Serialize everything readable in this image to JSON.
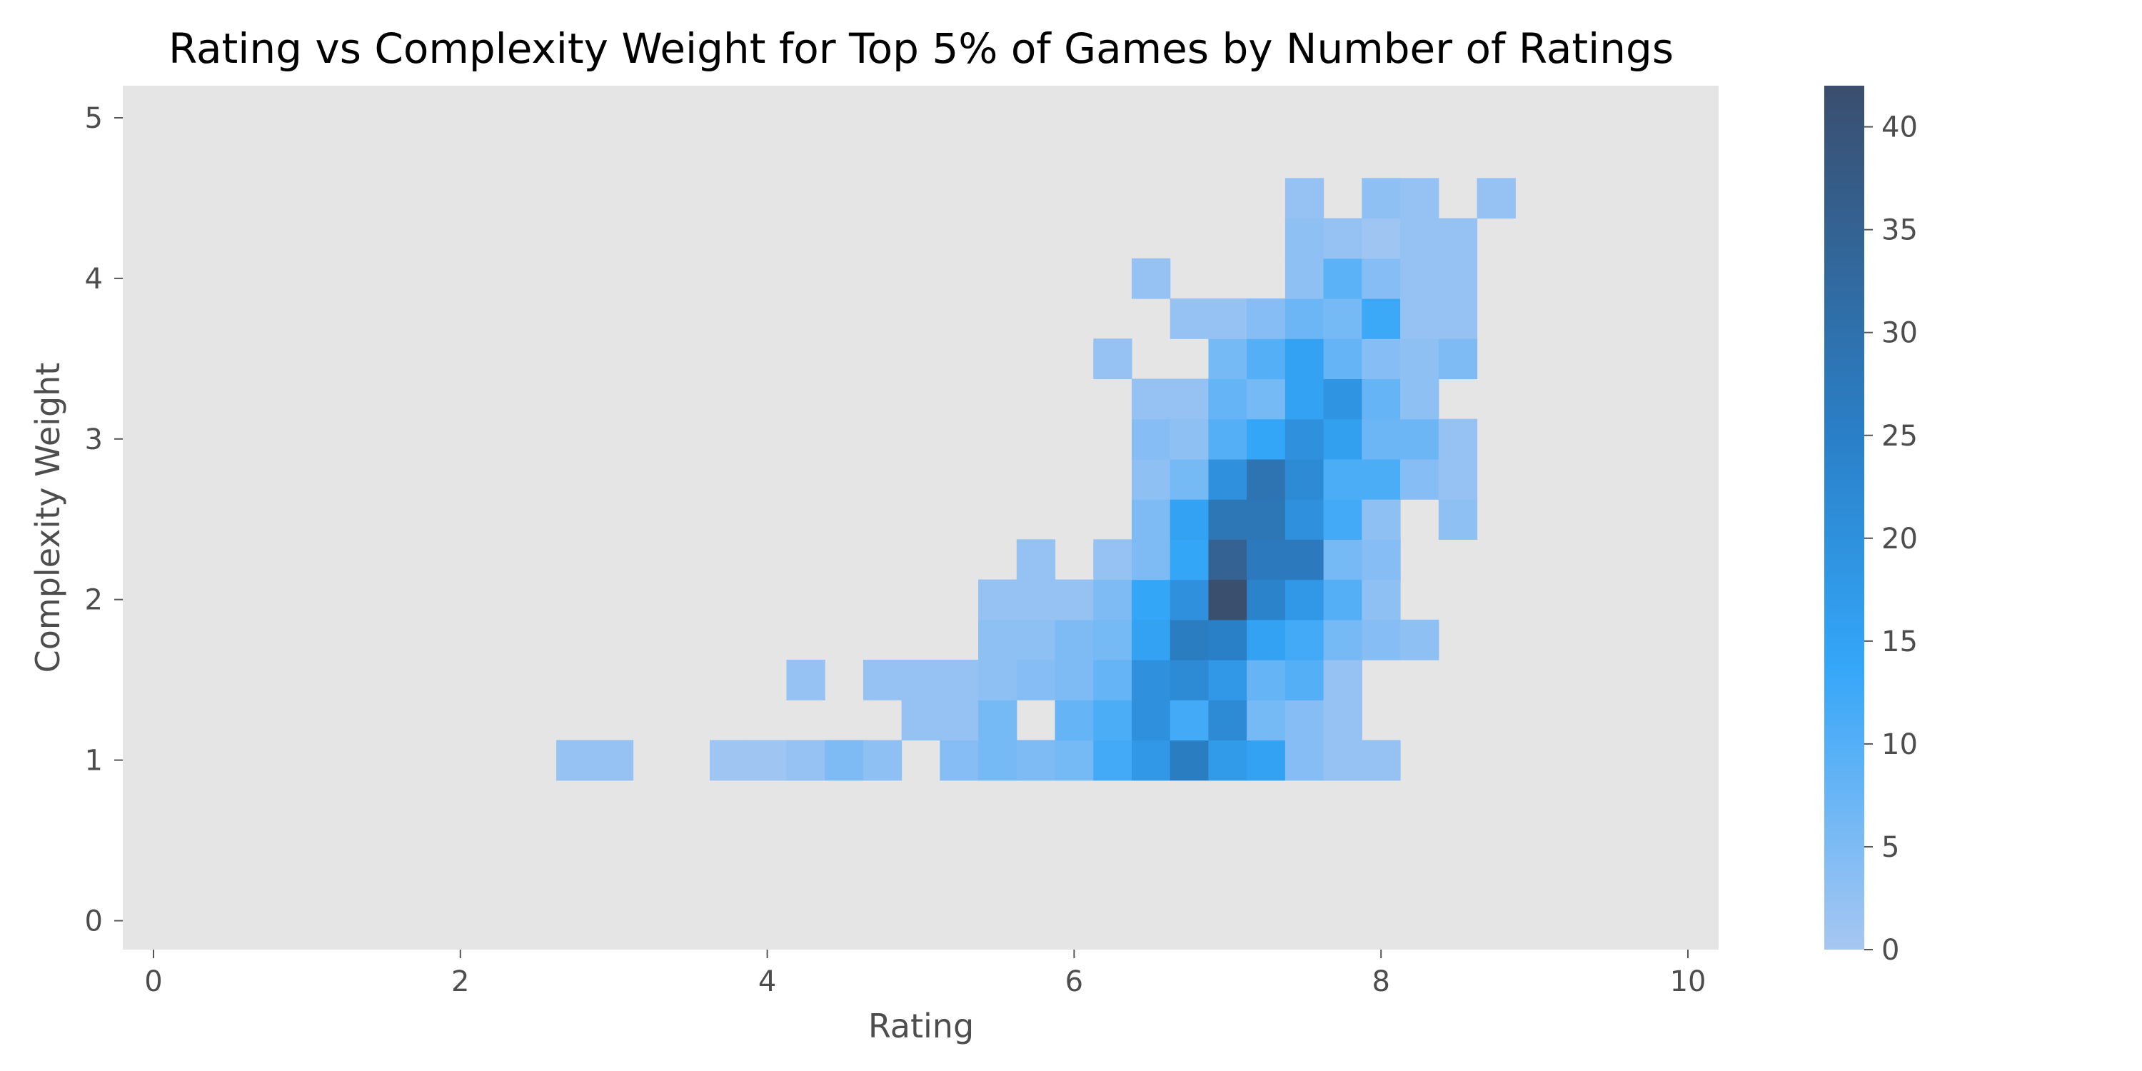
{
  "chart_data": {
    "type": "heatmap",
    "title": "Rating vs Complexity Weight for Top 5% of Games by Number of Ratings",
    "xlabel": "Rating",
    "ylabel": "Complexity Weight",
    "xlim": [
      -0.2,
      10.2
    ],
    "ylim": [
      -0.18,
      5.2
    ],
    "x_ticks": [
      0,
      2,
      4,
      6,
      8,
      10
    ],
    "y_ticks": [
      0,
      1,
      2,
      3,
      4,
      5
    ],
    "bin_width_x": 0.25,
    "bin_height_y": 0.25,
    "colorbar": {
      "min": 0,
      "max": 42,
      "ticks": [
        0,
        5,
        10,
        15,
        20,
        25,
        30,
        35,
        40
      ]
    },
    "grid": false,
    "cells": [
      [
        2.75,
        1.0,
        2
      ],
      [
        3.0,
        1.0,
        2
      ],
      [
        3.75,
        1.0,
        1
      ],
      [
        4.0,
        1.0,
        1
      ],
      [
        4.25,
        1.0,
        2
      ],
      [
        4.5,
        1.0,
        5
      ],
      [
        4.75,
        1.0,
        3
      ],
      [
        5.25,
        1.0,
        4
      ],
      [
        5.5,
        1.0,
        6
      ],
      [
        5.75,
        1.0,
        5
      ],
      [
        6.0,
        1.0,
        6
      ],
      [
        6.25,
        1.0,
        12
      ],
      [
        6.5,
        1.0,
        18
      ],
      [
        6.75,
        1.0,
        26
      ],
      [
        7.0,
        1.0,
        17
      ],
      [
        7.25,
        1.0,
        15
      ],
      [
        7.5,
        1.0,
        4
      ],
      [
        7.75,
        1.0,
        2
      ],
      [
        8.0,
        1.0,
        2
      ],
      [
        5.0,
        1.25,
        2
      ],
      [
        5.25,
        1.25,
        2
      ],
      [
        5.5,
        1.25,
        6
      ],
      [
        6.0,
        1.25,
        8
      ],
      [
        6.25,
        1.25,
        11
      ],
      [
        6.5,
        1.25,
        20
      ],
      [
        6.75,
        1.25,
        12
      ],
      [
        7.0,
        1.25,
        22
      ],
      [
        7.25,
        1.25,
        6
      ],
      [
        7.5,
        1.25,
        4
      ],
      [
        7.75,
        1.25,
        2
      ],
      [
        4.25,
        1.5,
        2
      ],
      [
        4.75,
        1.5,
        2
      ],
      [
        5.0,
        1.5,
        2
      ],
      [
        5.25,
        1.5,
        2
      ],
      [
        5.5,
        1.5,
        3
      ],
      [
        5.75,
        1.5,
        4
      ],
      [
        6.0,
        1.5,
        5
      ],
      [
        6.25,
        1.5,
        8
      ],
      [
        6.5,
        1.5,
        20
      ],
      [
        6.75,
        1.5,
        22
      ],
      [
        7.0,
        1.5,
        18
      ],
      [
        7.25,
        1.5,
        8
      ],
      [
        7.5,
        1.5,
        10
      ],
      [
        7.75,
        1.5,
        2
      ],
      [
        5.5,
        1.75,
        3
      ],
      [
        5.75,
        1.75,
        3
      ],
      [
        6.0,
        1.75,
        5
      ],
      [
        6.25,
        1.75,
        6
      ],
      [
        6.5,
        1.75,
        15
      ],
      [
        6.75,
        1.75,
        26
      ],
      [
        7.0,
        1.75,
        25
      ],
      [
        7.25,
        1.75,
        15
      ],
      [
        7.5,
        1.75,
        12
      ],
      [
        7.75,
        1.75,
        6
      ],
      [
        8.0,
        1.75,
        4
      ],
      [
        8.25,
        1.75,
        3
      ],
      [
        5.5,
        2.0,
        2
      ],
      [
        5.75,
        2.0,
        2
      ],
      [
        6.0,
        2.0,
        2
      ],
      [
        6.25,
        2.0,
        5
      ],
      [
        6.5,
        2.0,
        14
      ],
      [
        6.75,
        2.0,
        20
      ],
      [
        7.0,
        2.0,
        42
      ],
      [
        7.25,
        2.0,
        24
      ],
      [
        7.5,
        2.0,
        18
      ],
      [
        7.75,
        2.0,
        10
      ],
      [
        8.0,
        2.0,
        3
      ],
      [
        5.75,
        2.25,
        2
      ],
      [
        6.25,
        2.25,
        2
      ],
      [
        6.5,
        2.25,
        5
      ],
      [
        6.75,
        2.25,
        14
      ],
      [
        7.0,
        2.25,
        35
      ],
      [
        7.25,
        2.25,
        27
      ],
      [
        7.5,
        2.25,
        27
      ],
      [
        7.75,
        2.25,
        6
      ],
      [
        8.0,
        2.25,
        4
      ],
      [
        6.5,
        2.5,
        5
      ],
      [
        6.75,
        2.5,
        15
      ],
      [
        7.0,
        2.5,
        28
      ],
      [
        7.25,
        2.5,
        28
      ],
      [
        7.5,
        2.5,
        20
      ],
      [
        7.75,
        2.5,
        12
      ],
      [
        8.0,
        2.5,
        3
      ],
      [
        8.5,
        2.5,
        3
      ],
      [
        6.5,
        2.75,
        3
      ],
      [
        6.75,
        2.75,
        6
      ],
      [
        7.0,
        2.75,
        20
      ],
      [
        7.25,
        2.75,
        29
      ],
      [
        7.5,
        2.75,
        22
      ],
      [
        7.75,
        2.75,
        11
      ],
      [
        8.0,
        2.75,
        11
      ],
      [
        8.25,
        2.75,
        4
      ],
      [
        8.5,
        2.75,
        2
      ],
      [
        6.5,
        3.0,
        4
      ],
      [
        6.75,
        3.0,
        3
      ],
      [
        7.0,
        3.0,
        10
      ],
      [
        7.25,
        3.0,
        14
      ],
      [
        7.5,
        3.0,
        20
      ],
      [
        7.75,
        3.0,
        16
      ],
      [
        8.0,
        3.0,
        7
      ],
      [
        8.25,
        3.0,
        7
      ],
      [
        8.5,
        3.0,
        2
      ],
      [
        6.5,
        3.25,
        2
      ],
      [
        6.75,
        3.25,
        2
      ],
      [
        7.0,
        3.25,
        8
      ],
      [
        7.25,
        3.25,
        6
      ],
      [
        7.5,
        3.25,
        15
      ],
      [
        7.75,
        3.25,
        19
      ],
      [
        8.0,
        3.25,
        8
      ],
      [
        8.25,
        3.25,
        3
      ],
      [
        6.25,
        3.5,
        2
      ],
      [
        7.0,
        3.5,
        6
      ],
      [
        7.25,
        3.5,
        10
      ],
      [
        7.5,
        3.5,
        15
      ],
      [
        7.75,
        3.5,
        8
      ],
      [
        8.0,
        3.5,
        4
      ],
      [
        8.25,
        3.5,
        3
      ],
      [
        8.5,
        3.5,
        5
      ],
      [
        6.75,
        3.75,
        2
      ],
      [
        7.0,
        3.75,
        2
      ],
      [
        7.25,
        3.75,
        4
      ],
      [
        7.5,
        3.75,
        7
      ],
      [
        7.75,
        3.75,
        6
      ],
      [
        8.0,
        3.75,
        13
      ],
      [
        8.25,
        3.75,
        2
      ],
      [
        8.5,
        3.75,
        2
      ],
      [
        6.5,
        4.0,
        2
      ],
      [
        7.5,
        4.0,
        3
      ],
      [
        7.75,
        4.0,
        9
      ],
      [
        8.0,
        4.0,
        4
      ],
      [
        8.25,
        4.0,
        2
      ],
      [
        8.5,
        4.0,
        2
      ],
      [
        7.5,
        4.25,
        3
      ],
      [
        7.75,
        4.25,
        2
      ],
      [
        8.0,
        4.25,
        1
      ],
      [
        8.25,
        4.25,
        2
      ],
      [
        8.5,
        4.25,
        2
      ],
      [
        7.5,
        4.5,
        2
      ],
      [
        8.0,
        4.5,
        3
      ],
      [
        8.25,
        4.5,
        2
      ],
      [
        8.75,
        4.5,
        2
      ]
    ]
  }
}
